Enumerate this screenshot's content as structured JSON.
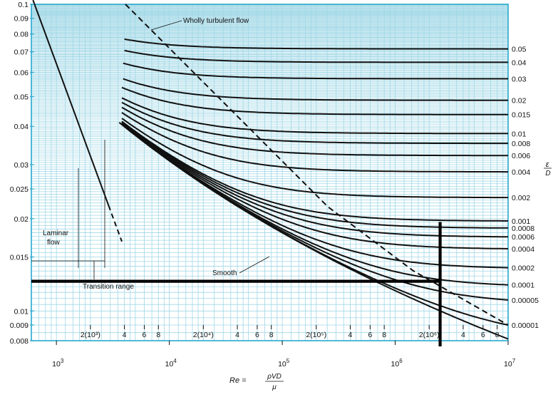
{
  "chart_data": {
    "type": "line",
    "title": "",
    "xlabel": "",
    "ylabel": "",
    "xscale": "log",
    "yscale": "log",
    "xlim": [
      600,
      10000000
    ],
    "ylim": [
      0.008,
      0.1
    ],
    "grid": true,
    "x_axis_label_parts": {
      "lhs": "Re =",
      "numerator": "ρVD",
      "denominator": "μ"
    },
    "right_axis_label_parts": {
      "numerator": "ε",
      "denominator": "D"
    },
    "y_ticks": [
      "0.1",
      "0.09",
      "0.08",
      "0.07",
      "0.06",
      "0.05",
      "0.04",
      "0.03",
      "0.025",
      "0.02",
      "0.015",
      "0.01",
      "0.009",
      "0.008"
    ],
    "x_ticks_major": [
      {
        "base": "10",
        "exp": "3"
      },
      {
        "base": "10",
        "exp": "4"
      },
      {
        "base": "10",
        "exp": "5"
      },
      {
        "base": "10",
        "exp": "6"
      },
      {
        "base": "10",
        "exp": "7"
      }
    ],
    "x_ticks_minor": [
      {
        "x": 2000,
        "label": "2(10³)"
      },
      {
        "x": 4000,
        "label": "4"
      },
      {
        "x": 6000,
        "label": "6"
      },
      {
        "x": 8000,
        "label": "8"
      },
      {
        "x": 20000,
        "label": "2(10⁴)"
      },
      {
        "x": 40000,
        "label": "4"
      },
      {
        "x": 60000,
        "label": "6"
      },
      {
        "x": 80000,
        "label": "8"
      },
      {
        "x": 200000,
        "label": "2(10⁵)"
      },
      {
        "x": 400000,
        "label": "4"
      },
      {
        "x": 600000,
        "label": "6"
      },
      {
        "x": 800000,
        "label": "8"
      },
      {
        "x": 2000000,
        "label": "2(10⁶)"
      },
      {
        "x": 4000000,
        "label": "4"
      },
      {
        "x": 6000000,
        "label": "6"
      },
      {
        "x": 8000000,
        "label": "8"
      },
      {
        "x": 20000000,
        "label": "2(10⁷)"
      },
      {
        "x": 40000000,
        "label": "4"
      },
      {
        "x": 60000000,
        "label": "6"
      },
      {
        "x": 80000000,
        "label": "8"
      }
    ],
    "roughness_labels": [
      "0.05",
      "0.04",
      "0.03",
      "0.02",
      "0.015",
      "0.01",
      "0.008",
      "0.006",
      "0.004",
      "0.002",
      "0.001",
      "0.0008",
      "0.0006",
      "0.0004",
      "0.0002",
      "0.0001",
      "0.00005",
      "0.00001"
    ],
    "roughness_values": [
      0.05,
      0.04,
      0.03,
      0.02,
      0.015,
      0.01,
      0.008,
      0.006,
      0.004,
      0.002,
      0.001,
      0.0008,
      0.0006,
      0.0004,
      0.0002,
      0.0001,
      5e-05,
      1e-05
    ],
    "series": [
      {
        "values": "f = 64/Re",
        "x_range": [
          600,
          2900
        ]
      },
      {
        "values": "f = 64/Re (dashed)",
        "x_range": [
          2900,
          3800
        ]
      }
    ],
    "annotations": {
      "wholly_turbulent": "Wholly turbulent flow",
      "laminar": [
        "Laminar",
        "flow"
      ],
      "transition": "Transition range",
      "smooth": "Smooth"
    },
    "highlight": {
      "horizontal_f": 0.0125,
      "vertical_re": 2500000,
      "vertical_f_top": 0.0195
    }
  }
}
